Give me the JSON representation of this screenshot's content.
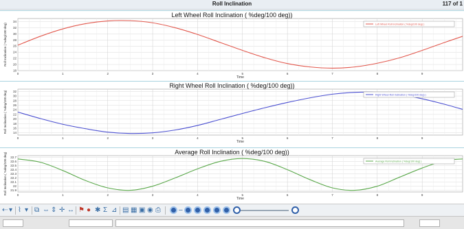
{
  "window": {
    "title": "Roll Inclination",
    "pager": "117 of 1"
  },
  "plots": [
    {
      "title": "Left Wheel Roll Inclination ( %deg/100 deg))",
      "legend": "Left Wheel Roll Inclination ( %deg/100 deg) )",
      "ylabel": "Roll Inclination ( %deg/100 deg)",
      "xlabel": "Time",
      "color": "#e2574c",
      "y_ticks": [
        "34",
        "32",
        "30",
        "28",
        "26",
        "24",
        "22",
        "20",
        "18"
      ],
      "x_ticks": [
        "0",
        "1",
        "2",
        "3",
        "4",
        "5",
        "6",
        "7",
        "8",
        "9"
      ]
    },
    {
      "title": "Right Wheel Roll Inclination ( %deg/100 deg))",
      "legend": "Right Wheel Roll Inclination ( %deg/100 deg) )",
      "ylabel": "Roll Inclination ( %deg/100 deg)",
      "xlabel": "Time",
      "color": "#4a4fd1",
      "y_ticks": [
        "32",
        "30",
        "28",
        "26",
        "24",
        "22",
        "20",
        "18",
        "16",
        "14"
      ],
      "x_ticks": [
        "0",
        "1",
        "2",
        "3",
        "4",
        "5",
        "6",
        "7",
        "8",
        "9"
      ]
    },
    {
      "title": "Average Roll Inclination ( %deg/100 deg))",
      "legend": "Average Roll Inclination ( %deg/100 deg) )",
      "ylabel": "Roll Inclination ( %deg/100 deg)",
      "xlabel": "Time",
      "color": "#5aa84a",
      "y_ticks": [
        "22.7",
        "22.6",
        "22.5",
        "22.4",
        "22.3",
        "22.2",
        "22.1",
        "22",
        "21.9"
      ],
      "x_ticks": [
        "0",
        "1",
        "2",
        "3",
        "4",
        "5",
        "6",
        "7",
        "8",
        "9"
      ]
    }
  ],
  "chart_data": [
    {
      "type": "line",
      "title": "Left Wheel Roll Inclination ( %deg/100 deg))",
      "xlabel": "Time",
      "ylabel": "Roll Inclination ( %deg/100 deg)",
      "xlim": [
        0,
        9.9
      ],
      "ylim": [
        18,
        35
      ],
      "series": [
        {
          "name": "Left Wheel Roll Inclination ( %deg/100 deg) )",
          "x": [
            0,
            0.5,
            1,
            1.5,
            2,
            2.5,
            3,
            3.5,
            4,
            4.5,
            5,
            5.5,
            6,
            6.5,
            7,
            7.5,
            8,
            8.5,
            9,
            9.5,
            9.9
          ],
          "y": [
            26.3,
            29.2,
            31.6,
            33.3,
            34.2,
            34.3,
            33.6,
            32.0,
            29.8,
            27.2,
            24.6,
            22.2,
            20.3,
            19.2,
            18.8,
            19.2,
            20.4,
            22.2,
            24.6,
            27.2,
            29.2
          ]
        }
      ]
    },
    {
      "type": "line",
      "title": "Right Wheel Roll Inclination ( %deg/100 deg))",
      "xlabel": "Time",
      "ylabel": "Roll Inclination ( %deg/100 deg)",
      "xlim": [
        0,
        9.9
      ],
      "ylim": [
        13,
        33
      ],
      "series": [
        {
          "name": "Right Wheel Roll Inclination ( %deg/100 deg) )",
          "x": [
            0,
            0.5,
            1,
            1.5,
            2,
            2.5,
            3,
            3.5,
            4,
            4.5,
            5,
            5.5,
            6,
            6.5,
            7,
            7.5,
            8,
            8.5,
            9,
            9.5,
            9.9
          ],
          "y": [
            23.0,
            20.2,
            17.7,
            15.8,
            14.3,
            13.7,
            14.0,
            15.2,
            17.2,
            19.8,
            22.4,
            24.9,
            27.2,
            29.2,
            30.8,
            31.6,
            31.6,
            30.6,
            28.8,
            26.4,
            24.2
          ]
        }
      ]
    },
    {
      "type": "line",
      "title": "Average Roll Inclination ( %deg/100 deg))",
      "xlabel": "Time",
      "ylabel": "Roll Inclination ( %deg/100 deg)",
      "xlim": [
        0,
        9.9
      ],
      "ylim": [
        21.86,
        22.74
      ],
      "series": [
        {
          "name": "Average Roll Inclination ( %deg/100 deg) )",
          "x": [
            0,
            0.5,
            1,
            1.5,
            2,
            2.5,
            3,
            3.5,
            4,
            4.5,
            5,
            5.5,
            6,
            6.5,
            7,
            7.5,
            8,
            8.5,
            9,
            9.5,
            9.9
          ],
          "y": [
            22.66,
            22.58,
            22.38,
            22.14,
            21.96,
            21.9,
            22.0,
            22.2,
            22.42,
            22.6,
            22.67,
            22.6,
            22.4,
            22.16,
            21.96,
            21.9,
            22.0,
            22.22,
            22.44,
            22.62,
            22.66
          ]
        }
      ]
    }
  ]
}
